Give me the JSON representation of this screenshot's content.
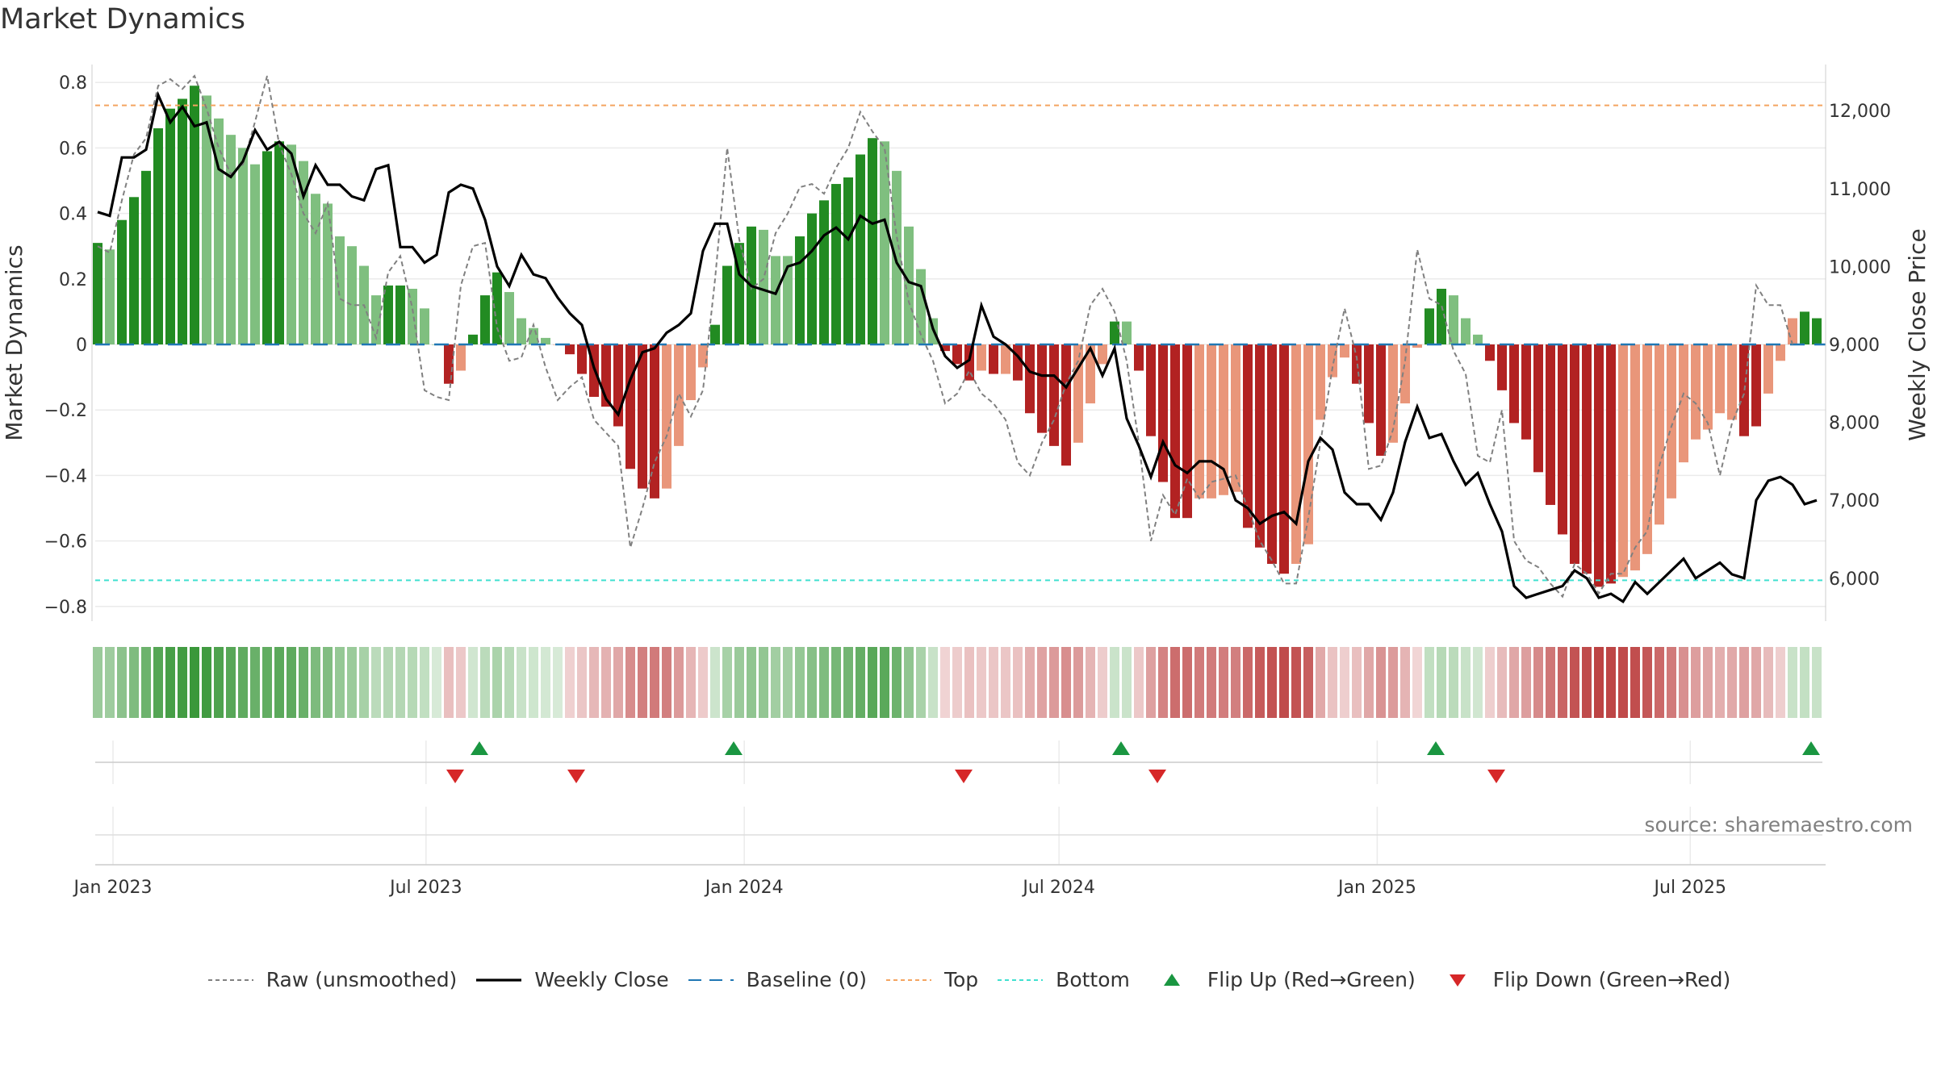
{
  "title": "Market Dynamics",
  "source": "source: sharemaestro.com",
  "colors": {
    "strong_green": "#228b22",
    "light_green": "#7fbf7f",
    "strong_red": "#b22222",
    "light_red": "#e9967a",
    "raw": "#808080",
    "close": "#000000",
    "baseline": "#1f77b4",
    "top": "#f4a460",
    "bottom": "#40e0d0",
    "flip_up": "#1a9641",
    "flip_down": "#d62728"
  },
  "legend": [
    {
      "key": "raw",
      "label": "Raw (unsmoothed)"
    },
    {
      "key": "close",
      "label": "Weekly Close"
    },
    {
      "key": "baseline",
      "label": "Baseline (0)"
    },
    {
      "key": "top",
      "label": "Top"
    },
    {
      "key": "bottom",
      "label": "Bottom"
    },
    {
      "key": "flip_up",
      "label": "Flip Up (Red→Green)"
    },
    {
      "key": "flip_down",
      "label": "Flip Down (Green→Red)"
    }
  ],
  "chart_data": {
    "type": "bar",
    "title": "Market Dynamics",
    "ylabel": "Market Dynamics",
    "y2label": "Weekly Close Price",
    "ylim": [
      -0.85,
      0.85
    ],
    "y2lim": [
      5300,
      12300
    ],
    "yticks": [
      "0.8",
      "0.6",
      "0.4",
      "0.2",
      "0",
      "−0.2",
      "−0.4",
      "−0.6",
      "−0.8"
    ],
    "y2ticks": [
      "12,000",
      "11,000",
      "10,000",
      "9,000",
      "8,000",
      "7,000",
      "6,000"
    ],
    "xticks": [
      "Jan 2023",
      "Jul 2023",
      "Jan 2024",
      "Jul 2024",
      "Jan 2025",
      "Jul 2025"
    ],
    "x_start": "2023-01-01",
    "x_step_days": 7,
    "top_level": 0.73,
    "bottom_level": -0.72,
    "baseline": 0,
    "values": [
      0.31,
      0.29,
      0.38,
      0.45,
      0.53,
      0.66,
      0.72,
      0.75,
      0.79,
      0.76,
      0.69,
      0.64,
      0.6,
      0.55,
      0.59,
      0.62,
      0.61,
      0.56,
      0.46,
      0.43,
      0.33,
      0.3,
      0.24,
      0.15,
      0.18,
      0.18,
      0.17,
      0.11,
      0.0,
      -0.12,
      -0.08,
      0.03,
      0.15,
      0.22,
      0.16,
      0.08,
      0.05,
      0.02,
      0.0,
      -0.03,
      -0.09,
      -0.16,
      -0.19,
      -0.25,
      -0.38,
      -0.44,
      -0.47,
      -0.44,
      -0.31,
      -0.17,
      -0.07,
      0.06,
      0.24,
      0.31,
      0.36,
      0.35,
      0.27,
      0.27,
      0.33,
      0.4,
      0.44,
      0.49,
      0.51,
      0.58,
      0.63,
      0.62,
      0.53,
      0.36,
      0.23,
      0.08,
      -0.02,
      -0.06,
      -0.11,
      -0.08,
      -0.09,
      -0.09,
      -0.11,
      -0.21,
      -0.27,
      -0.31,
      -0.37,
      -0.3,
      -0.18,
      -0.06,
      0.07,
      0.07,
      -0.08,
      -0.28,
      -0.42,
      -0.53,
      -0.53,
      -0.47,
      -0.47,
      -0.46,
      -0.45,
      -0.56,
      -0.62,
      -0.67,
      -0.7,
      -0.67,
      -0.61,
      -0.23,
      -0.1,
      -0.04,
      -0.12,
      -0.24,
      -0.34,
      -0.3,
      -0.18,
      -0.01,
      0.11,
      0.17,
      0.15,
      0.08,
      0.03,
      -0.05,
      -0.14,
      -0.24,
      -0.29,
      -0.39,
      -0.49,
      -0.58,
      -0.67,
      -0.7,
      -0.74,
      -0.73,
      -0.71,
      -0.69,
      -0.64,
      -0.55,
      -0.47,
      -0.36,
      -0.29,
      -0.26,
      -0.21,
      -0.23,
      -0.28,
      -0.25,
      -0.15,
      -0.05,
      0.08,
      0.1,
      0.08
    ],
    "colors": [
      "strong_green",
      "light_green",
      "strong_green",
      "strong_green",
      "strong_green",
      "strong_green",
      "strong_green",
      "strong_green",
      "strong_green",
      "light_green",
      "light_green",
      "light_green",
      "light_green",
      "light_green",
      "strong_green",
      "strong_green",
      "light_green",
      "light_green",
      "light_green",
      "light_green",
      "light_green",
      "light_green",
      "light_green",
      "light_green",
      "strong_green",
      "strong_green",
      "light_green",
      "light_green",
      "light_green",
      "strong_red",
      "light_red",
      "strong_green",
      "strong_green",
      "strong_green",
      "light_green",
      "light_green",
      "light_green",
      "light_green",
      "light_red",
      "strong_red",
      "strong_red",
      "strong_red",
      "strong_red",
      "strong_red",
      "strong_red",
      "strong_red",
      "strong_red",
      "light_red",
      "light_red",
      "light_red",
      "light_red",
      "strong_green",
      "strong_green",
      "strong_green",
      "strong_green",
      "light_green",
      "light_green",
      "light_green",
      "strong_green",
      "strong_green",
      "strong_green",
      "strong_green",
      "strong_green",
      "strong_green",
      "strong_green",
      "light_green",
      "light_green",
      "light_green",
      "light_green",
      "light_green",
      "strong_red",
      "strong_red",
      "strong_red",
      "light_red",
      "strong_red",
      "light_red",
      "strong_red",
      "strong_red",
      "strong_red",
      "strong_red",
      "strong_red",
      "light_red",
      "light_red",
      "light_red",
      "strong_green",
      "light_green",
      "strong_red",
      "strong_red",
      "strong_red",
      "strong_red",
      "strong_red",
      "light_red",
      "light_red",
      "light_red",
      "light_red",
      "strong_red",
      "strong_red",
      "strong_red",
      "strong_red",
      "light_red",
      "light_red",
      "light_red",
      "light_red",
      "light_red",
      "strong_red",
      "strong_red",
      "strong_red",
      "light_red",
      "light_red",
      "light_red",
      "strong_green",
      "strong_green",
      "light_green",
      "light_green",
      "light_green",
      "strong_red",
      "strong_red",
      "strong_red",
      "strong_red",
      "strong_red",
      "strong_red",
      "strong_red",
      "strong_red",
      "strong_red",
      "strong_red",
      "strong_red",
      "light_red",
      "light_red",
      "light_red",
      "light_red",
      "light_red",
      "light_red",
      "light_red",
      "light_red",
      "light_red",
      "light_red",
      "strong_red",
      "strong_red",
      "light_red",
      "light_red",
      "light_red",
      "strong_green",
      "strong_green",
      "light_green"
    ],
    "raw": [
      0.3,
      0.28,
      0.44,
      0.58,
      0.63,
      0.79,
      0.81,
      0.78,
      0.82,
      0.72,
      0.6,
      0.52,
      0.55,
      0.68,
      0.82,
      0.61,
      0.52,
      0.4,
      0.34,
      0.43,
      0.14,
      0.12,
      0.12,
      0.02,
      0.22,
      0.27,
      0.11,
      -0.14,
      -0.16,
      -0.17,
      0.18,
      0.3,
      0.31,
      0.05,
      -0.05,
      -0.04,
      0.06,
      -0.07,
      -0.17,
      -0.13,
      -0.1,
      -0.23,
      -0.27,
      -0.31,
      -0.62,
      -0.5,
      -0.36,
      -0.28,
      -0.15,
      -0.22,
      -0.14,
      0.2,
      0.6,
      0.32,
      0.17,
      0.2,
      0.34,
      0.4,
      0.48,
      0.49,
      0.46,
      0.54,
      0.6,
      0.71,
      0.65,
      0.6,
      0.33,
      0.13,
      0.03,
      -0.05,
      -0.18,
      -0.15,
      -0.08,
      -0.15,
      -0.18,
      -0.23,
      -0.36,
      -0.4,
      -0.3,
      -0.23,
      -0.12,
      -0.05,
      0.12,
      0.17,
      0.1,
      -0.05,
      -0.3,
      -0.6,
      -0.46,
      -0.52,
      -0.41,
      -0.47,
      -0.42,
      -0.41,
      -0.4,
      -0.5,
      -0.6,
      -0.66,
      -0.73,
      -0.73,
      -0.53,
      -0.3,
      -0.07,
      0.11,
      -0.04,
      -0.38,
      -0.37,
      -0.26,
      -0.05,
      0.29,
      0.14,
      0.12,
      -0.02,
      -0.09,
      -0.34,
      -0.36,
      -0.2,
      -0.6,
      -0.66,
      -0.68,
      -0.73,
      -0.77,
      -0.67,
      -0.7,
      -0.76,
      -0.7,
      -0.7,
      -0.62,
      -0.57,
      -0.37,
      -0.25,
      -0.15,
      -0.18,
      -0.24,
      -0.4,
      -0.24,
      -0.15,
      0.18,
      0.12,
      0.12,
      0.0
    ],
    "close": [
      10700,
      10650,
      11400,
      11400,
      11500,
      12200,
      11850,
      12050,
      11800,
      11850,
      11250,
      11150,
      11350,
      11750,
      11500,
      11600,
      11450,
      10900,
      11300,
      11050,
      11050,
      10900,
      10850,
      11250,
      11300,
      10250,
      10250,
      10050,
      10150,
      10950,
      11050,
      11000,
      10600,
      10000,
      9750,
      10150,
      9900,
      9850,
      9600,
      9400,
      9250,
      8700,
      8300,
      8100,
      8550,
      8900,
      8950,
      9150,
      9250,
      9400,
      10200,
      10550,
      10550,
      9900,
      9750,
      9700,
      9650,
      10000,
      10050,
      10200,
      10400,
      10500,
      10350,
      10650,
      10550,
      10600,
      10050,
      9800,
      9750,
      9200,
      8850,
      8700,
      8800,
      9500,
      9100,
      9000,
      8850,
      8650,
      8600,
      8600,
      8450,
      8700,
      8950,
      8600,
      8950,
      8050,
      7700,
      7300,
      7750,
      7450,
      7350,
      7500,
      7500,
      7400,
      7000,
      6900,
      6700,
      6800,
      6850,
      6700,
      7500,
      7800,
      7650,
      7100,
      6950,
      6950,
      6750,
      7100,
      7750,
      8200,
      7800,
      7850,
      7500,
      7200,
      7350,
      6950,
      6600,
      5900,
      5750,
      5800,
      5850,
      5900,
      6100,
      6000,
      5750,
      5800,
      5700,
      5950,
      5800,
      5950,
      6100,
      6250,
      6000,
      6100,
      6200,
      6050,
      6000,
      7000,
      7250,
      7300,
      7200,
      6950,
      7000
    ],
    "flip_up_index": [
      31,
      52,
      84,
      110,
      141
    ],
    "flip_down_index": [
      29,
      39,
      71,
      87,
      115
    ]
  }
}
